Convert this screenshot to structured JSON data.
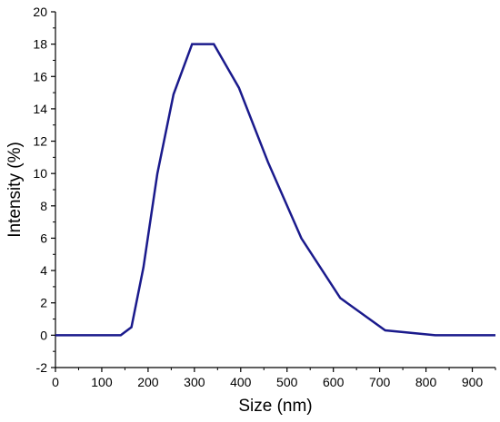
{
  "chart_data": {
    "type": "line",
    "xlabel": "Size (nm)",
    "ylabel": "Intensity (%)",
    "xlim": [
      0,
      950
    ],
    "ylim": [
      -2,
      20
    ],
    "xticks": [
      "0",
      "100",
      "200",
      "300",
      "400",
      "500",
      "600",
      "700",
      "800",
      "900"
    ],
    "yticks": [
      "-2",
      "0",
      "2",
      "4",
      "6",
      "8",
      "10",
      "12",
      "14",
      "16",
      "18",
      "20"
    ],
    "grid": false,
    "line_color": "#1a1a8c",
    "series": [
      {
        "x": [
          0,
          141,
          164,
          190,
          220,
          255,
          295,
          342,
          396,
          459,
          531,
          615,
          712,
          820,
          950
        ],
        "y": [
          0,
          0,
          0.5,
          4.2,
          10,
          14.9,
          18,
          18,
          15.3,
          10.7,
          6.0,
          2.3,
          0.3,
          0,
          0
        ]
      }
    ]
  }
}
